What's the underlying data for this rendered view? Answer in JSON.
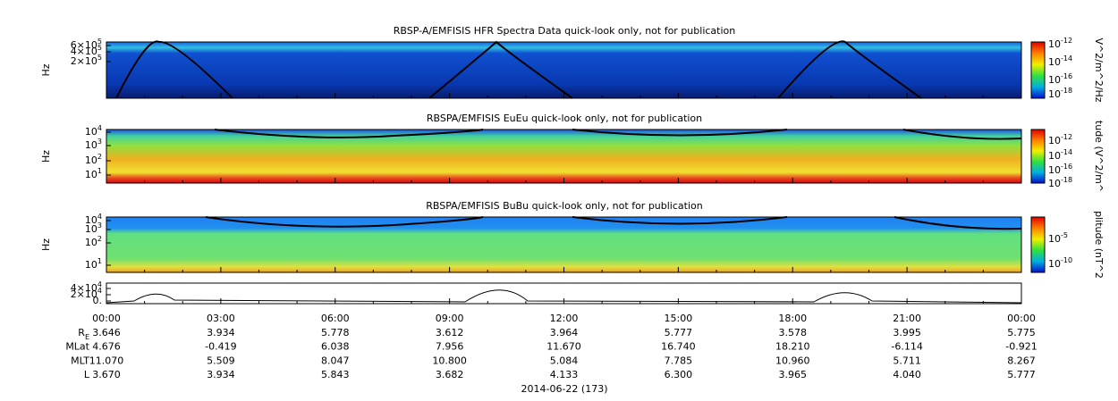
{
  "panels": [
    {
      "title": "RBSP-A/EMFISIS  HFR Spectra Data quick-look only, not for publication",
      "ylabel": "Hz",
      "yticks": [
        {
          "text": "6×10",
          "exp": "5"
        },
        {
          "text": "4×10",
          "exp": "5"
        },
        {
          "text": "2×10",
          "exp": "5"
        }
      ],
      "colorbar_label": "V^2/m^2/Hz",
      "colorbar_ticks": [
        {
          "text": "10",
          "exp": "-12"
        },
        {
          "text": "10",
          "exp": "-14"
        },
        {
          "text": "10",
          "exp": "-16"
        },
        {
          "text": "10",
          "exp": "-18"
        }
      ]
    },
    {
      "title": "RBSPA/EMFISIS  EuEu quick-look only, not for publication",
      "ylabel": "Hz",
      "yticks": [
        {
          "text": "10",
          "exp": "4"
        },
        {
          "text": "10",
          "exp": "3"
        },
        {
          "text": "10",
          "exp": "2"
        },
        {
          "text": "10",
          "exp": "1"
        }
      ],
      "colorbar_label": "tude (V^2/m^",
      "colorbar_ticks": [
        {
          "text": "10",
          "exp": "-12"
        },
        {
          "text": "10",
          "exp": "-14"
        },
        {
          "text": "10",
          "exp": "-16"
        },
        {
          "text": "10",
          "exp": "-18"
        }
      ]
    },
    {
      "title": "RBSPA/EMFISIS  BuBu quick-look only, not for publication",
      "ylabel": "Hz",
      "yticks": [
        {
          "text": "10",
          "exp": "4"
        },
        {
          "text": "10",
          "exp": "3"
        },
        {
          "text": "10",
          "exp": "2"
        },
        {
          "text": "10",
          "exp": "1"
        }
      ],
      "colorbar_label": "plitude (nT^2",
      "colorbar_ticks": [
        {
          "text": "10",
          "exp": "-5"
        },
        {
          "text": "10",
          "exp": "-10"
        }
      ]
    },
    {
      "yticks": [
        {
          "text": "4×10",
          "exp": "4"
        },
        {
          "text": "2×10",
          "exp": "4"
        },
        {
          "text": "0."
        }
      ]
    }
  ],
  "time_ticks": [
    "00:00",
    "03:00",
    "06:00",
    "09:00",
    "12:00",
    "15:00",
    "18:00",
    "21:00",
    "00:00"
  ],
  "ephemeris": [
    {
      "label": "R",
      "sub": "E",
      "values": [
        "3.646",
        "3.934",
        "5.778",
        "3.612",
        "3.964",
        "5.777",
        "3.578",
        "3.995",
        "5.775"
      ]
    },
    {
      "label": "MLat",
      "values": [
        "4.676",
        "-0.419",
        "6.038",
        "7.956",
        "11.670",
        "16.740",
        "18.210",
        "-6.114",
        "-0.921"
      ]
    },
    {
      "label": "MLT",
      "values": [
        "11.070",
        "5.509",
        "8.047",
        "10.800",
        "5.084",
        "7.785",
        "10.960",
        "5.711",
        "8.267"
      ]
    },
    {
      "label": "L",
      "values": [
        "3.670",
        "3.934",
        "5.843",
        "3.682",
        "4.133",
        "6.300",
        "3.965",
        "4.040",
        "5.777"
      ]
    }
  ],
  "date": "2014-06-22 (173)"
}
